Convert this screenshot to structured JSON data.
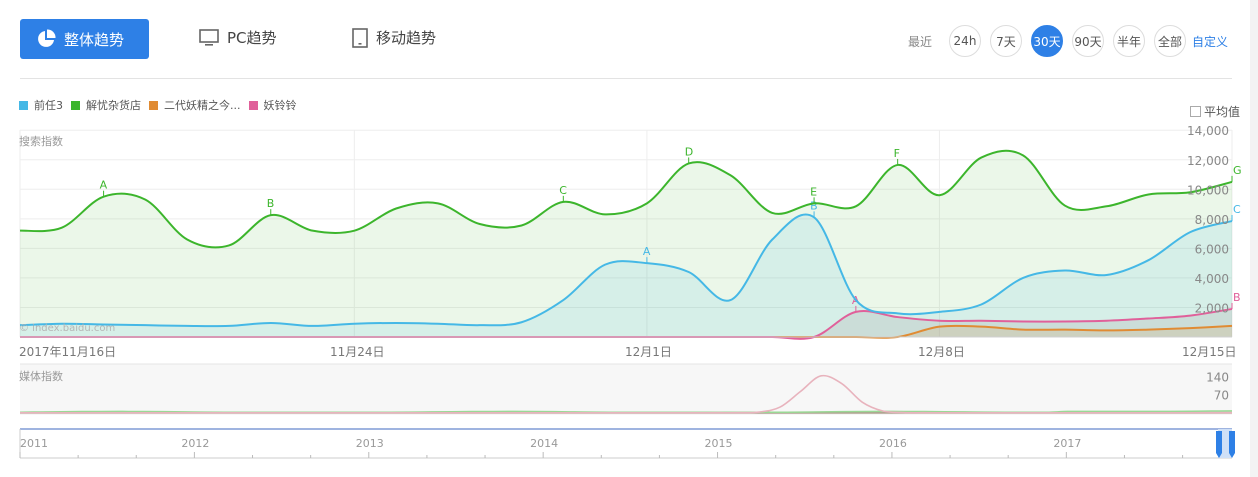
{
  "tabs": {
    "overall": "整体趋势",
    "pc": "PC趋势",
    "mobile": "移动趋势"
  },
  "range": {
    "label": "最近",
    "options": [
      "24h",
      "7天",
      "30天",
      "90天",
      "半年",
      "全部"
    ],
    "active": "30天",
    "custom": "自定义"
  },
  "legend": {
    "items": [
      {
        "label": "前任3",
        "color": "#45b8e6"
      },
      {
        "label": "解忧杂货店",
        "color": "#3cb52c"
      },
      {
        "label": "二代妖精之今...",
        "color": "#e08b33"
      },
      {
        "label": "妖铃铃",
        "color": "#e0609a"
      }
    ]
  },
  "average_toggle": "平均值",
  "search_panel": {
    "title": "搜索指数",
    "watermark": "© index.baidu.com",
    "x_labels": [
      "2017年11月16日",
      "11月24日",
      "12月1日",
      "12月8日",
      "12月15日"
    ],
    "y_labels": [
      "14,000",
      "12,000",
      "10,000",
      "8,000",
      "6,000",
      "4,000",
      "2,000"
    ]
  },
  "media_panel": {
    "title": "媒体指数",
    "y_labels": [
      "140",
      "70"
    ]
  },
  "timeline": {
    "years": [
      "2011",
      "2012",
      "2013",
      "2014",
      "2015",
      "2016",
      "2017"
    ]
  },
  "chart_data": [
    {
      "type": "area",
      "title": "搜索指数",
      "xlabel": "",
      "ylabel": "搜索指数",
      "x": [
        "11-16",
        "11-17",
        "11-18",
        "11-19",
        "11-20",
        "11-21",
        "11-22",
        "11-23",
        "11-24",
        "11-25",
        "11-26",
        "11-27",
        "11-28",
        "11-29",
        "11-30",
        "12-01",
        "12-02",
        "12-03",
        "12-04",
        "12-05",
        "12-06",
        "12-07",
        "12-08",
        "12-09",
        "12-10",
        "12-11",
        "12-12",
        "12-13",
        "12-14",
        "12-15"
      ],
      "x_tick_labels": [
        "2017年11月16日",
        "11月24日",
        "12月1日",
        "12月8日",
        "12月15日"
      ],
      "ylim": [
        0,
        14000
      ],
      "y_ticks": [
        2000,
        4000,
        6000,
        8000,
        10000,
        12000,
        14000
      ],
      "grid": true,
      "legend_position": "top-left",
      "series": [
        {
          "name": "前任3",
          "color": "#45b8e6",
          "values": [
            800,
            900,
            850,
            800,
            750,
            750,
            950,
            750,
            900,
            950,
            900,
            800,
            1000,
            2500,
            4900,
            5000,
            4400,
            2500,
            6600,
            8100,
            2500,
            1600,
            1700,
            2200,
            4000,
            4500,
            4200,
            5200,
            7100,
            7850
          ],
          "annotations": [
            {
              "label": "A",
              "x": "12-01"
            },
            {
              "label": "B",
              "x": "12-05"
            },
            {
              "label": "C",
              "x": "12-15"
            }
          ]
        },
        {
          "name": "解忧杂货店",
          "color": "#3cb52c",
          "values": [
            7200,
            7400,
            9500,
            9300,
            6600,
            6200,
            8250,
            7200,
            7200,
            8700,
            9050,
            7650,
            7550,
            9150,
            8300,
            9050,
            11750,
            10950,
            8400,
            9050,
            8850,
            11650,
            9600,
            12150,
            12300,
            8900,
            8850,
            9650,
            9800,
            10500
          ],
          "annotations": [
            {
              "label": "A",
              "x": "11-18"
            },
            {
              "label": "B",
              "x": "11-22"
            },
            {
              "label": "C",
              "x": "11-29"
            },
            {
              "label": "D",
              "x": "12-02"
            },
            {
              "label": "E",
              "x": "12-05"
            },
            {
              "label": "F",
              "x": "12-07"
            },
            {
              "label": "G",
              "x": "12-15"
            }
          ]
        },
        {
          "name": "二代妖精之今...",
          "color": "#e08b33",
          "values": [
            0,
            0,
            0,
            0,
            0,
            0,
            0,
            0,
            0,
            0,
            0,
            0,
            0,
            0,
            0,
            0,
            0,
            0,
            0,
            0,
            0,
            0,
            700,
            700,
            500,
            500,
            450,
            500,
            600,
            750
          ]
        },
        {
          "name": "妖铃铃",
          "color": "#e0609a",
          "values": [
            0,
            0,
            0,
            0,
            0,
            0,
            0,
            0,
            0,
            0,
            0,
            0,
            0,
            0,
            0,
            0,
            0,
            0,
            0,
            0,
            1700,
            1350,
            1100,
            1100,
            1050,
            1050,
            1100,
            1250,
            1450,
            1900
          ],
          "annotations": [
            {
              "label": "A",
              "x": "12-06"
            },
            {
              "label": "B",
              "x": "12-15"
            }
          ]
        }
      ]
    },
    {
      "type": "line",
      "title": "媒体指数",
      "ylabel": "媒体指数",
      "x_range": [
        "2011",
        "2017"
      ],
      "ylim": [
        0,
        150
      ],
      "y_ticks": [
        70,
        140
      ],
      "series": [
        {
          "name": "妖铃铃",
          "color": "#e8a9b5",
          "note": "peak ~145 around mid-2015, otherwise ~2"
        },
        {
          "name": "解忧杂货店",
          "color": "#8fd48a",
          "note": "low values ~2-8"
        },
        {
          "name": "前任3",
          "color": "#45b8e6",
          "note": "near 0"
        },
        {
          "name": "二代妖精之今...",
          "color": "#e08b33",
          "note": "near 0"
        }
      ]
    }
  ]
}
